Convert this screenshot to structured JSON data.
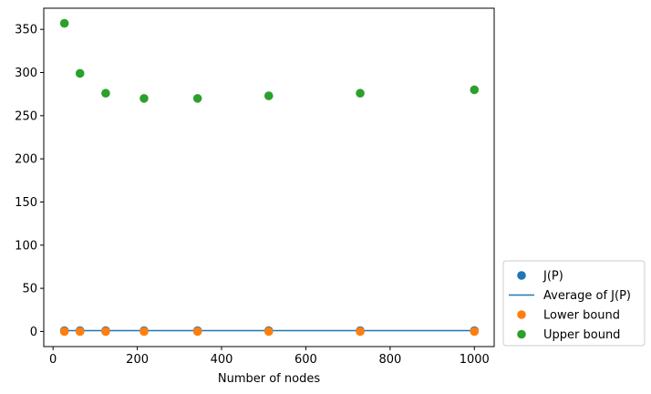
{
  "chart_data": {
    "type": "scatter",
    "title": "",
    "xlabel": "Number of nodes",
    "ylabel": "",
    "xlim": [
      -22,
      1047
    ],
    "ylim": [
      -17.5,
      374.5
    ],
    "x_ticks": [
      0,
      200,
      400,
      600,
      800,
      1000
    ],
    "y_ticks": [
      0,
      50,
      100,
      150,
      200,
      250,
      300,
      350
    ],
    "grid": false,
    "legend_position": "outside-bottom-right",
    "x": [
      27,
      64,
      125,
      216,
      343,
      512,
      729,
      1000
    ],
    "series": [
      {
        "name": "J(P)",
        "kind": "scatter",
        "color": "#1f77b4",
        "values": [
          1,
          1,
          1,
          1,
          1,
          1,
          1,
          1
        ]
      },
      {
        "name": "Average of J(P)",
        "kind": "line",
        "color": "#1f77b4",
        "values": [
          1,
          1,
          1,
          1,
          1,
          1,
          1,
          1
        ]
      },
      {
        "name": "Lower bound",
        "kind": "scatter",
        "color": "#ff7f0e",
        "values": [
          0,
          0,
          0,
          0,
          0,
          0,
          0,
          0
        ]
      },
      {
        "name": "Upper bound",
        "kind": "scatter",
        "color": "#2ca02c",
        "values": [
          357,
          299,
          276,
          270,
          270,
          273,
          276,
          280
        ]
      }
    ]
  }
}
